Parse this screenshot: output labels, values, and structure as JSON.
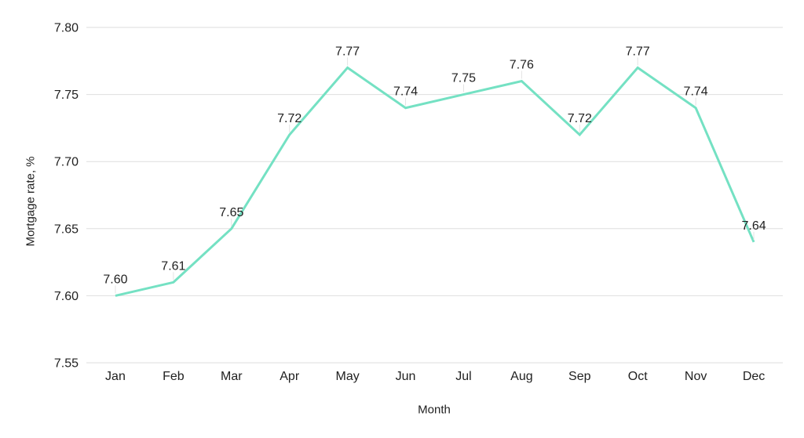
{
  "chart_data": {
    "type": "line",
    "x": [
      "Jan",
      "Feb",
      "Mar",
      "Apr",
      "May",
      "Jun",
      "Jul",
      "Aug",
      "Sep",
      "Oct",
      "Nov",
      "Dec"
    ],
    "series": [
      {
        "name": "Mortgage rate",
        "values": [
          7.6,
          7.61,
          7.65,
          7.72,
          7.77,
          7.74,
          7.75,
          7.76,
          7.72,
          7.77,
          7.74,
          7.64
        ]
      }
    ],
    "data_labels": [
      "7.60",
      "7.61",
      "7.65",
      "7.72",
      "7.77",
      "7.74",
      "7.75",
      "7.76",
      "7.72",
      "7.77",
      "7.74",
      "7.64"
    ],
    "title": "",
    "xlabel": "Month",
    "ylabel": "Mortgage rate, %",
    "ylim": [
      7.55,
      7.8
    ],
    "yticks": [
      7.55,
      7.6,
      7.65,
      7.7,
      7.75,
      7.8
    ],
    "ytick_labels": [
      "7.55",
      "7.60",
      "7.65",
      "7.70",
      "7.75",
      "7.80"
    ],
    "grid": "horizontal",
    "legend": "none",
    "colors": {
      "line": "#74e1c3",
      "gridline": "#dedede",
      "stem": "#e3e3e3",
      "text": "#212121",
      "background": "#ffffff"
    }
  }
}
